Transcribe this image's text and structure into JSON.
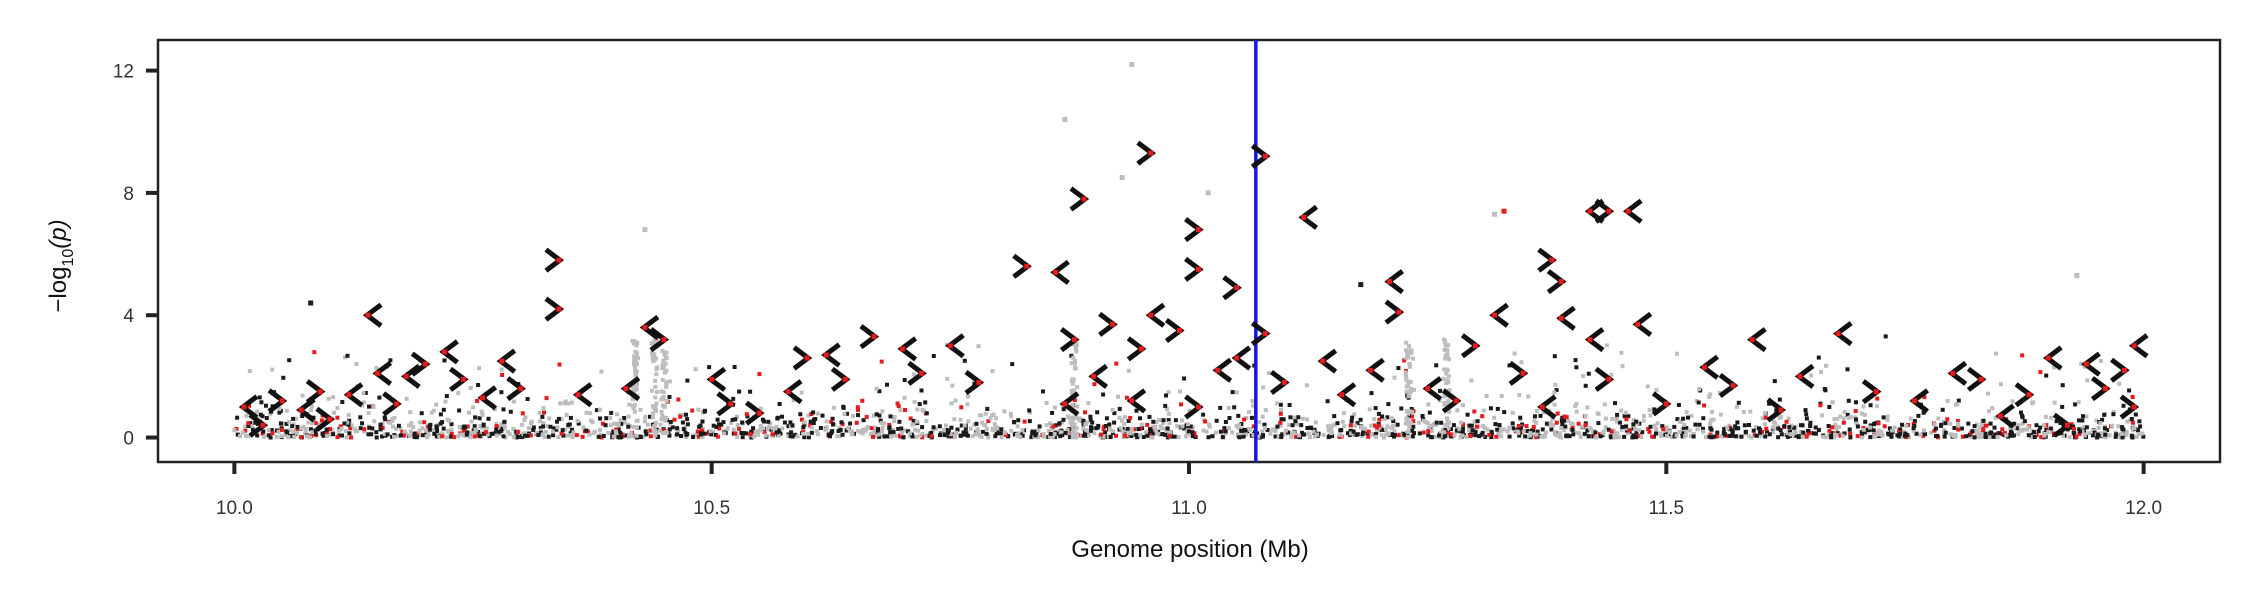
{
  "chart_data": {
    "type": "scatter",
    "title": "",
    "xlabel": "Genome position (Mb)",
    "ylabel": "−log10(p)",
    "ylabel_base": "−log",
    "ylabel_sub": "10",
    "ylabel_arg": "(p)",
    "xlim": [
      9.92,
      12.08
    ],
    "ylim": [
      -0.8,
      13.0
    ],
    "xticks": [
      10.0,
      10.5,
      11.0,
      11.5,
      12.0
    ],
    "xtick_labels": [
      "10.0",
      "10.5",
      "11.0",
      "11.5",
      "12.0"
    ],
    "yticks": [
      0,
      4,
      8,
      12
    ],
    "ytick_labels": [
      "0",
      "4",
      "8",
      "12"
    ],
    "grid": false,
    "legend": "none",
    "vline": {
      "x": 11.07,
      "color": "#1515e0"
    },
    "colors": {
      "background": "#1a1a1a",
      "light": "#bdbdbd",
      "highlight": "#e41a1c",
      "marker": "#111111",
      "axis": "#222222"
    },
    "highlight_markers": [
      {
        "x": 10.01,
        "y": 1.0,
        "dir": "left"
      },
      {
        "x": 10.03,
        "y": 0.4,
        "dir": "right"
      },
      {
        "x": 10.05,
        "y": 1.2,
        "dir": "right"
      },
      {
        "x": 10.07,
        "y": 0.9,
        "dir": "left"
      },
      {
        "x": 10.09,
        "y": 1.5,
        "dir": "right"
      },
      {
        "x": 10.1,
        "y": 0.6,
        "dir": "right"
      },
      {
        "x": 10.12,
        "y": 1.4,
        "dir": "left"
      },
      {
        "x": 10.14,
        "y": 4.0,
        "dir": "left"
      },
      {
        "x": 10.15,
        "y": 2.1,
        "dir": "left"
      },
      {
        "x": 10.17,
        "y": 1.1,
        "dir": "right"
      },
      {
        "x": 10.18,
        "y": 2.0,
        "dir": "left"
      },
      {
        "x": 10.2,
        "y": 2.4,
        "dir": "right"
      },
      {
        "x": 10.22,
        "y": 2.8,
        "dir": "left"
      },
      {
        "x": 10.24,
        "y": 1.9,
        "dir": "right"
      },
      {
        "x": 10.26,
        "y": 1.3,
        "dir": "left"
      },
      {
        "x": 10.28,
        "y": 2.5,
        "dir": "left"
      },
      {
        "x": 10.3,
        "y": 1.6,
        "dir": "right"
      },
      {
        "x": 10.34,
        "y": 5.8,
        "dir": "right"
      },
      {
        "x": 10.34,
        "y": 4.2,
        "dir": "right"
      },
      {
        "x": 10.36,
        "y": 1.4,
        "dir": "left"
      },
      {
        "x": 10.41,
        "y": 1.6,
        "dir": "left"
      },
      {
        "x": 10.43,
        "y": 3.6,
        "dir": "left"
      },
      {
        "x": 10.45,
        "y": 3.2,
        "dir": "right"
      },
      {
        "x": 10.5,
        "y": 1.9,
        "dir": "left"
      },
      {
        "x": 10.52,
        "y": 1.1,
        "dir": "right"
      },
      {
        "x": 10.55,
        "y": 0.8,
        "dir": "right"
      },
      {
        "x": 10.58,
        "y": 1.5,
        "dir": "left"
      },
      {
        "x": 10.6,
        "y": 2.6,
        "dir": "right"
      },
      {
        "x": 10.62,
        "y": 2.7,
        "dir": "left"
      },
      {
        "x": 10.64,
        "y": 1.9,
        "dir": "right"
      },
      {
        "x": 10.67,
        "y": 3.3,
        "dir": "right"
      },
      {
        "x": 10.7,
        "y": 2.9,
        "dir": "left"
      },
      {
        "x": 10.72,
        "y": 2.1,
        "dir": "right"
      },
      {
        "x": 10.75,
        "y": 3.0,
        "dir": "left"
      },
      {
        "x": 10.78,
        "y": 1.8,
        "dir": "right"
      },
      {
        "x": 10.83,
        "y": 5.6,
        "dir": "right"
      },
      {
        "x": 10.86,
        "y": 5.4,
        "dir": "left"
      },
      {
        "x": 10.87,
        "y": 1.1,
        "dir": "left"
      },
      {
        "x": 10.88,
        "y": 3.2,
        "dir": "right"
      },
      {
        "x": 10.89,
        "y": 7.8,
        "dir": "right"
      },
      {
        "x": 10.9,
        "y": 2.0,
        "dir": "left"
      },
      {
        "x": 10.92,
        "y": 3.7,
        "dir": "right"
      },
      {
        "x": 10.94,
        "y": 1.2,
        "dir": "left"
      },
      {
        "x": 10.95,
        "y": 2.9,
        "dir": "right"
      },
      {
        "x": 10.96,
        "y": 9.3,
        "dir": "right"
      },
      {
        "x": 10.96,
        "y": 4.0,
        "dir": "left"
      },
      {
        "x": 10.99,
        "y": 3.5,
        "dir": "right"
      },
      {
        "x": 11.01,
        "y": 6.8,
        "dir": "right"
      },
      {
        "x": 11.01,
        "y": 5.5,
        "dir": "right"
      },
      {
        "x": 11.01,
        "y": 1.0,
        "dir": "right"
      },
      {
        "x": 11.03,
        "y": 2.2,
        "dir": "left"
      },
      {
        "x": 11.05,
        "y": 4.9,
        "dir": "right"
      },
      {
        "x": 11.05,
        "y": 2.6,
        "dir": "left"
      },
      {
        "x": 11.08,
        "y": 9.2,
        "dir": "right"
      },
      {
        "x": 11.08,
        "y": 3.4,
        "dir": "right"
      },
      {
        "x": 11.1,
        "y": 1.8,
        "dir": "right"
      },
      {
        "x": 11.12,
        "y": 7.2,
        "dir": "left"
      },
      {
        "x": 11.14,
        "y": 2.5,
        "dir": "left"
      },
      {
        "x": 11.16,
        "y": 1.4,
        "dir": "left"
      },
      {
        "x": 11.19,
        "y": 2.2,
        "dir": "left"
      },
      {
        "x": 11.21,
        "y": 5.1,
        "dir": "left"
      },
      {
        "x": 11.22,
        "y": 4.1,
        "dir": "right"
      },
      {
        "x": 11.25,
        "y": 1.6,
        "dir": "left"
      },
      {
        "x": 11.28,
        "y": 1.2,
        "dir": "right"
      },
      {
        "x": 11.3,
        "y": 3.0,
        "dir": "right"
      },
      {
        "x": 11.32,
        "y": 4.0,
        "dir": "left"
      },
      {
        "x": 11.35,
        "y": 2.1,
        "dir": "right"
      },
      {
        "x": 11.37,
        "y": 1.0,
        "dir": "left"
      },
      {
        "x": 11.38,
        "y": 5.8,
        "dir": "right"
      },
      {
        "x": 11.39,
        "y": 5.1,
        "dir": "right"
      },
      {
        "x": 11.39,
        "y": 3.9,
        "dir": "left"
      },
      {
        "x": 11.42,
        "y": 7.4,
        "dir": "left"
      },
      {
        "x": 11.44,
        "y": 7.4,
        "dir": "right"
      },
      {
        "x": 11.46,
        "y": 7.4,
        "dir": "left"
      },
      {
        "x": 11.42,
        "y": 3.2,
        "dir": "left"
      },
      {
        "x": 11.44,
        "y": 1.9,
        "dir": "right"
      },
      {
        "x": 11.47,
        "y": 3.7,
        "dir": "left"
      },
      {
        "x": 11.5,
        "y": 1.1,
        "dir": "right"
      },
      {
        "x": 11.54,
        "y": 2.3,
        "dir": "left"
      },
      {
        "x": 11.57,
        "y": 1.7,
        "dir": "right"
      },
      {
        "x": 11.59,
        "y": 3.2,
        "dir": "left"
      },
      {
        "x": 11.62,
        "y": 0.9,
        "dir": "right"
      },
      {
        "x": 11.64,
        "y": 2.0,
        "dir": "left"
      },
      {
        "x": 11.68,
        "y": 3.4,
        "dir": "left"
      },
      {
        "x": 11.72,
        "y": 1.5,
        "dir": "right"
      },
      {
        "x": 11.76,
        "y": 1.2,
        "dir": "left"
      },
      {
        "x": 11.8,
        "y": 2.1,
        "dir": "left"
      },
      {
        "x": 11.83,
        "y": 1.9,
        "dir": "right"
      },
      {
        "x": 11.85,
        "y": 0.7,
        "dir": "left"
      },
      {
        "x": 11.88,
        "y": 1.4,
        "dir": "right"
      },
      {
        "x": 11.9,
        "y": 2.6,
        "dir": "left"
      },
      {
        "x": 11.92,
        "y": 0.4,
        "dir": "right"
      },
      {
        "x": 11.94,
        "y": 2.4,
        "dir": "left"
      },
      {
        "x": 11.96,
        "y": 1.6,
        "dir": "right"
      },
      {
        "x": 11.98,
        "y": 2.2,
        "dir": "right"
      },
      {
        "x": 11.99,
        "y": 3.0,
        "dir": "left"
      },
      {
        "x": 11.99,
        "y": 1.0,
        "dir": "right"
      }
    ],
    "notable_points": [
      {
        "x": 10.94,
        "y": 12.2,
        "group": "light"
      },
      {
        "x": 10.87,
        "y": 10.4,
        "group": "light"
      },
      {
        "x": 10.93,
        "y": 8.5,
        "group": "light"
      },
      {
        "x": 10.43,
        "y": 6.8,
        "group": "light"
      },
      {
        "x": 11.33,
        "y": 7.4,
        "group": "highlight"
      },
      {
        "x": 11.32,
        "y": 7.3,
        "group": "light"
      },
      {
        "x": 11.18,
        "y": 5.0,
        "group": "dark"
      },
      {
        "x": 11.93,
        "y": 5.3,
        "group": "light"
      },
      {
        "x": 10.08,
        "y": 4.4,
        "group": "dark"
      },
      {
        "x": 11.02,
        "y": 8.0,
        "group": "light"
      }
    ]
  }
}
